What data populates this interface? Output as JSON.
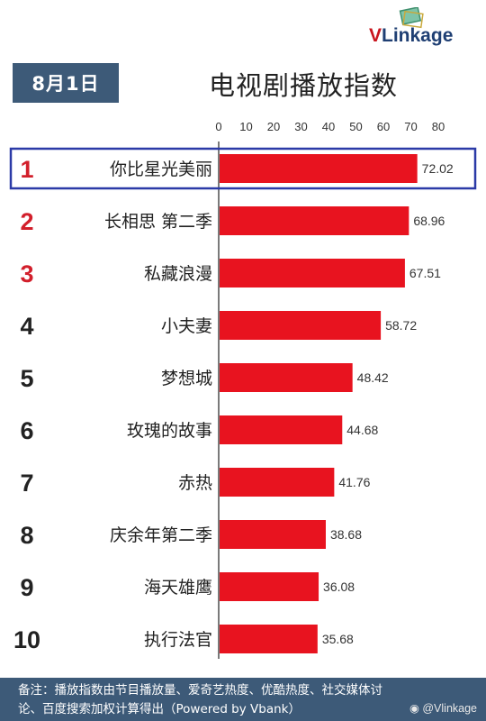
{
  "header": {
    "date": "8月1日",
    "title": "电视剧播放指数",
    "brand_first": "V",
    "brand_rest": "Linkage"
  },
  "chart_data": {
    "type": "bar",
    "orientation": "horizontal",
    "title": "电视剧播放指数",
    "xlim": [
      0,
      80
    ],
    "x_ticks": [
      0,
      10,
      20,
      30,
      40,
      50,
      60,
      70,
      80
    ],
    "ranks": [
      "1",
      "2",
      "3",
      "4",
      "5",
      "6",
      "7",
      "8",
      "9",
      "10"
    ],
    "categories": [
      "你比星光美丽",
      "长相思 第二季",
      "私藏浪漫",
      "小夫妻",
      "梦想城",
      "玫瑰的故事",
      "赤热",
      "庆余年第二季",
      "海天雄鹰",
      "执行法官"
    ],
    "values": [
      72.02,
      68.96,
      67.51,
      58.72,
      48.42,
      44.68,
      41.76,
      38.68,
      36.08,
      35.68
    ],
    "highlighted_index": 0,
    "colors": {
      "bar": "#e8131f",
      "rank_top3": "#d21f2b",
      "rank_other": "#222222",
      "highlight_box": "#2b3aa7"
    }
  },
  "footer": {
    "note_line1": "备注：播放指数由节目播放量、爱奇艺热度、优酷热度、社交媒体讨",
    "note_line2": "论、百度搜索加权计算得出（Powered by Vbank）",
    "weibo": "@Vlinkage"
  }
}
